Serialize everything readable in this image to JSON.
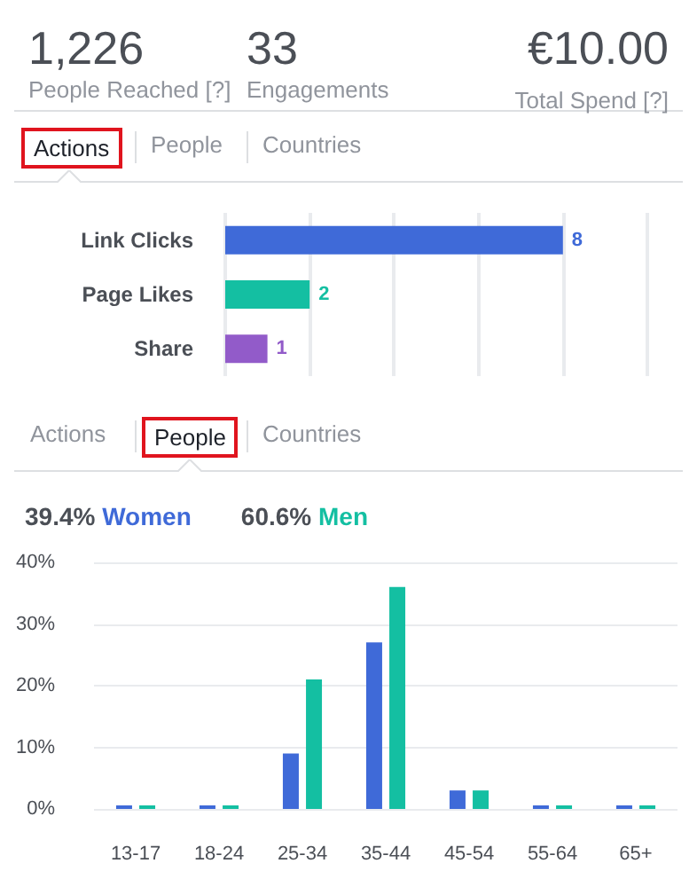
{
  "chart_data": [
    {
      "type": "other",
      "annotations": [
        "1,226",
        "People Reached [?]",
        "33",
        "Engagements",
        "€10.00",
        "Total Spend [?]"
      ]
    },
    {
      "type": "bar",
      "orientation": "horizontal",
      "annotations": [
        "Actions",
        "People",
        "Countries"
      ],
      "categories": [
        "Link Clicks",
        "Page Likes",
        "Share"
      ],
      "values": [
        8,
        2,
        1
      ],
      "colors": [
        "#3f6ad8",
        "#14bfa2",
        "#925bc9"
      ],
      "xlim": [
        0,
        10
      ],
      "xticks": [
        {
          "value": 0,
          "label": null
        },
        {
          "value": 2,
          "label": null
        },
        {
          "value": 4,
          "label": null
        },
        {
          "value": 6,
          "label": null
        },
        {
          "value": 8,
          "label": null
        },
        {
          "value": 10,
          "label": null
        }
      ],
      "grid": "x",
      "data_labels": true,
      "tick_labels": "y"
    },
    {
      "type": "bar",
      "annotations": [
        "Actions",
        "People",
        "Countries",
        "39.4%",
        "60.6%"
      ],
      "categories": [
        "13-17",
        "18-24",
        "25-34",
        "35-44",
        "45-54",
        "55-64",
        "65+"
      ],
      "series": [
        {
          "name": "Women",
          "color": "#3f6ad8",
          "values": [
            0,
            0,
            9,
            27,
            3,
            0,
            0
          ]
        },
        {
          "name": "Men",
          "color": "#14bfa2",
          "values": [
            0,
            0,
            21,
            36,
            3,
            0,
            0
          ]
        }
      ],
      "ylim": [
        0,
        40
      ],
      "yticks": [
        {
          "value": 0,
          "label": "0%"
        },
        {
          "value": 10,
          "label": "10%"
        },
        {
          "value": 20,
          "label": "20%"
        },
        {
          "value": 30,
          "label": "30%"
        },
        {
          "value": 40,
          "label": "40%"
        }
      ],
      "grid": "y",
      "legend": "top left"
    }
  ]
}
